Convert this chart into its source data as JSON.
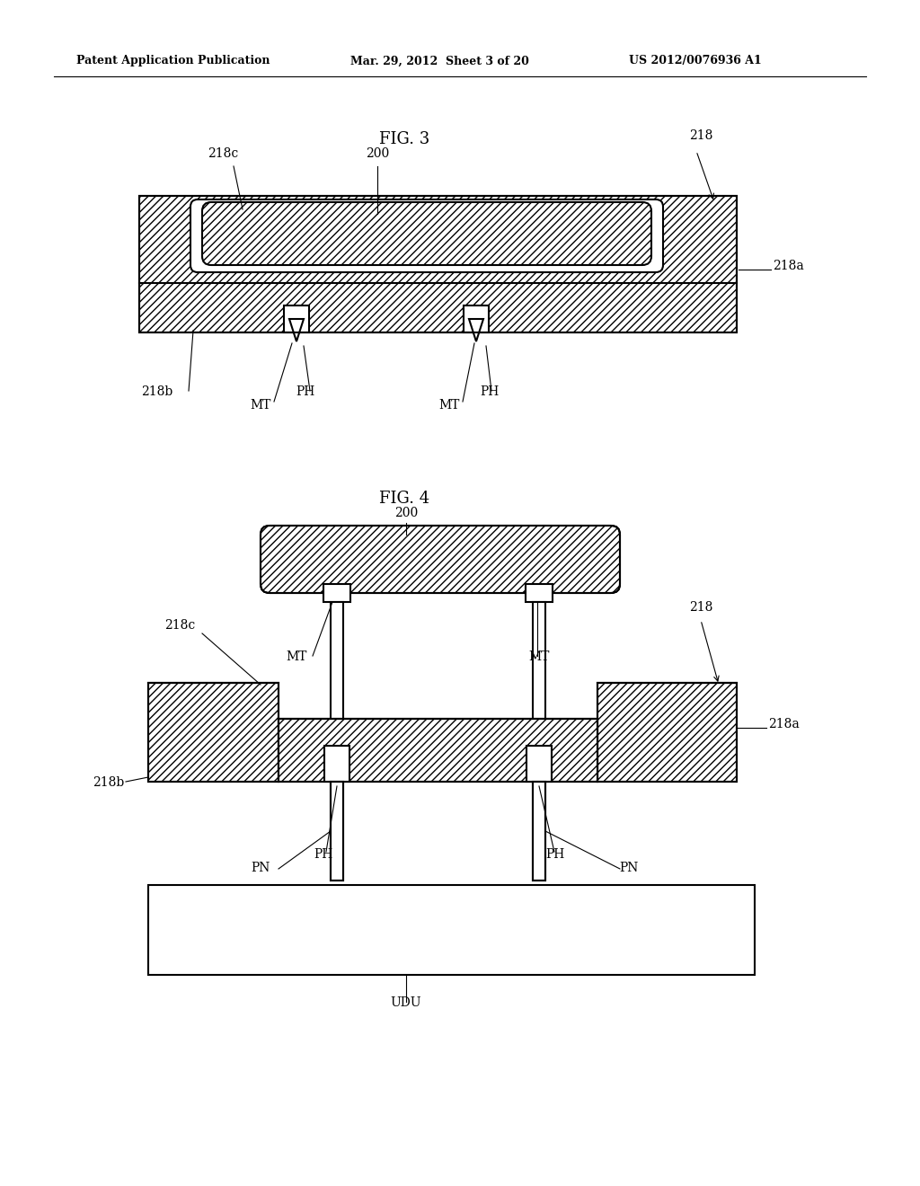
{
  "bg_color": "#ffffff",
  "header_left": "Patent Application Publication",
  "header_center": "Mar. 29, 2012  Sheet 3 of 20",
  "header_right": "US 2012/0076936 A1",
  "fig3_title": "FIG. 3",
  "fig4_title": "FIG. 4",
  "hatch_pattern": "////",
  "line_color": "#000000",
  "line_width": 1.5
}
